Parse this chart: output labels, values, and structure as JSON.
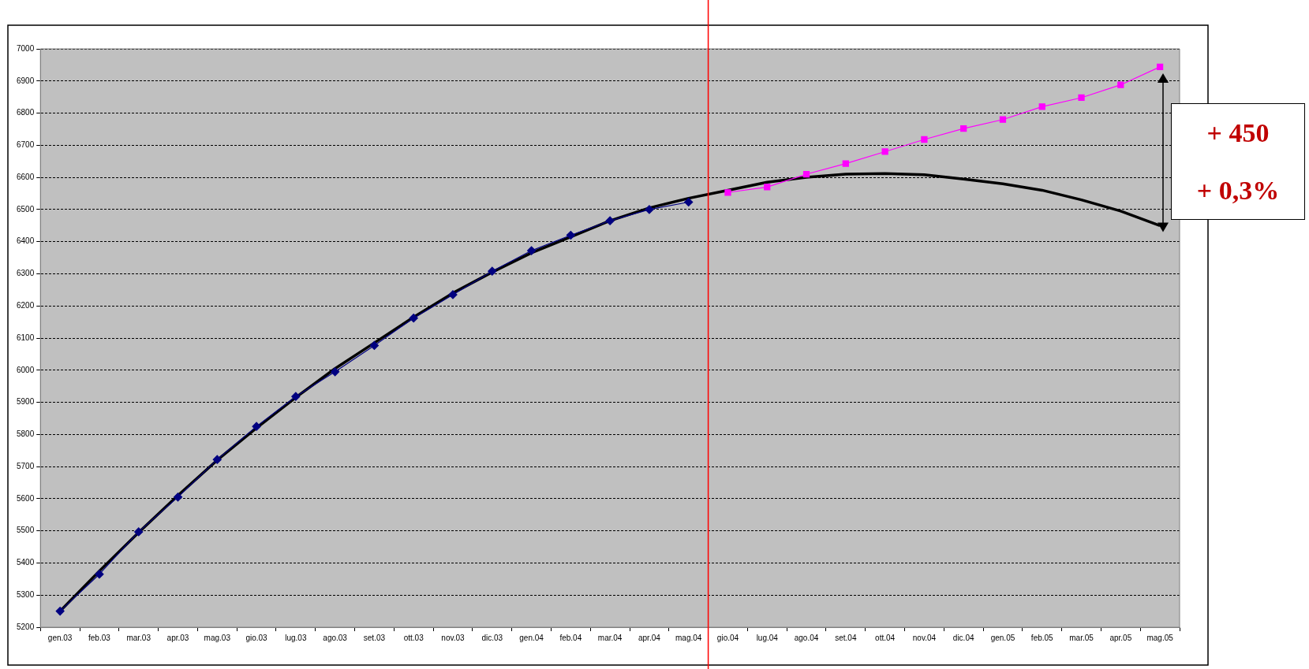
{
  "chart_data": {
    "type": "line",
    "categories": [
      "gen.03",
      "feb.03",
      "mar.03",
      "apr.03",
      "mag.03",
      "gio.03",
      "lug.03",
      "ago.03",
      "set.03",
      "ott.03",
      "nov.03",
      "dic.03",
      "gen.04",
      "feb.04",
      "mar.04",
      "apr.04",
      "mag.04",
      "gio.04",
      "lug.04",
      "ago.04",
      "set.04",
      "ott.04",
      "nov.04",
      "dic.04",
      "gen.05",
      "feb.05",
      "mar.05",
      "apr.05",
      "mag.05"
    ],
    "series": [
      {
        "color": "#000080",
        "marker": "diamond",
        "values": [
          5250,
          5365,
          5497,
          5605,
          5722,
          5825,
          5918,
          5995,
          6077,
          6162,
          6235,
          6308,
          6372,
          6420,
          6465,
          6500,
          6523,
          null,
          null,
          null,
          null,
          null,
          null,
          null,
          null,
          null,
          null,
          null,
          null
        ]
      },
      {
        "type": "line",
        "color": "#ff00ff",
        "marker": "square",
        "values": [
          null,
          null,
          null,
          null,
          null,
          null,
          null,
          null,
          null,
          null,
          null,
          null,
          null,
          null,
          null,
          null,
          null,
          6553,
          6570,
          6610,
          6643,
          6680,
          6718,
          6752,
          6780,
          6820,
          6848,
          6888,
          6944
        ]
      },
      {
        "type": "line",
        "color": "#000000",
        "marker": "none",
        "values": [
          5250,
          5375,
          5495,
          5610,
          5720,
          5820,
          5915,
          6005,
          6085,
          6165,
          6240,
          6305,
          6365,
          6415,
          6465,
          6505,
          6535,
          6560,
          6585,
          6600,
          6610,
          6612,
          6608,
          6595,
          6580,
          6560,
          6530,
          6495,
          6450
        ]
      }
    ],
    "ylim": [
      5200,
      7000
    ],
    "yticks": [
      5200,
      5300,
      5400,
      5500,
      5600,
      5700,
      5800,
      5900,
      6000,
      6100,
      6200,
      6300,
      6400,
      6500,
      6600,
      6700,
      6800,
      6900,
      7000
    ],
    "grid": "y",
    "legend": false,
    "annotations": [
      "+ 450",
      "+ 0,3%"
    ],
    "ref_lines": [
      {
        "axis": "x",
        "value": "gio.04",
        "color": "#ff0000"
      }
    ]
  }
}
